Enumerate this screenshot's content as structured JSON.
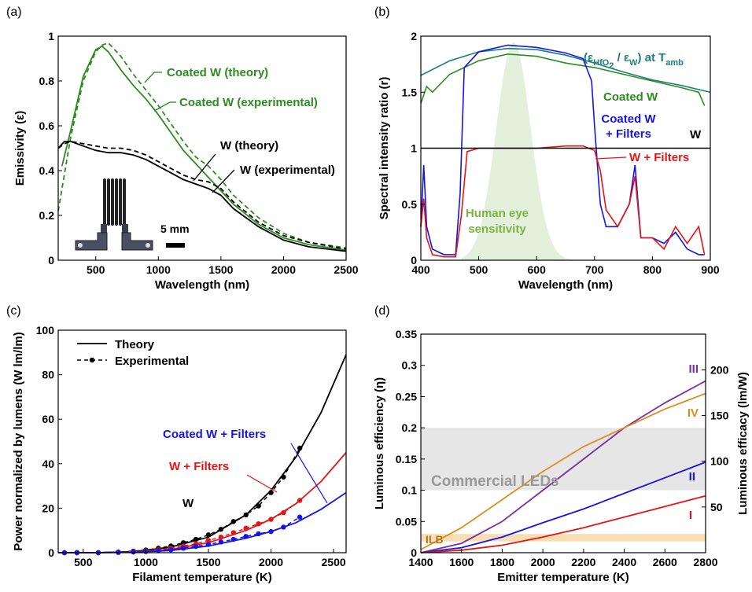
{
  "chart_data": [
    {
      "panel": "(a)",
      "type": "line",
      "xlabel": "Wavelength (nm)",
      "ylabel": "Emissivity (ε)",
      "xlim": [
        200,
        2500
      ],
      "ylim": [
        0,
        1
      ],
      "xticks": [
        500,
        1000,
        1500,
        2000,
        2500
      ],
      "yticks": [
        0,
        0.2,
        0.4,
        0.6,
        0.8,
        1
      ],
      "inset_scale_label": "5 mm",
      "series": [
        {
          "name": "Coated W (theory)",
          "color": "#2e8b22",
          "dash": true,
          "x": [
            200,
            300,
            400,
            500,
            550,
            600,
            700,
            800,
            900,
            1000,
            1100,
            1200,
            1300,
            1400,
            1500,
            1600,
            1800,
            2000,
            2200,
            2500
          ],
          "y": [
            0.22,
            0.55,
            0.8,
            0.93,
            0.96,
            0.97,
            0.91,
            0.83,
            0.76,
            0.69,
            0.61,
            0.53,
            0.46,
            0.42,
            0.36,
            0.29,
            0.19,
            0.12,
            0.08,
            0.055
          ]
        },
        {
          "name": "Coated W (experimental)",
          "color": "#2e8b22",
          "dash": false,
          "x": [
            230,
            300,
            400,
            500,
            550,
            600,
            700,
            800,
            900,
            1000,
            1100,
            1200,
            1300,
            1400,
            1500,
            1600,
            1800,
            2000,
            2200,
            2500
          ],
          "y": [
            0.42,
            0.58,
            0.82,
            0.94,
            0.955,
            0.93,
            0.85,
            0.78,
            0.72,
            0.65,
            0.57,
            0.49,
            0.43,
            0.37,
            0.31,
            0.25,
            0.16,
            0.1,
            0.07,
            0.045
          ]
        },
        {
          "name": "W (theory)",
          "color": "#000000",
          "dash": true,
          "x": [
            200,
            250,
            300,
            400,
            500,
            600,
            700,
            800,
            900,
            1000,
            1100,
            1200,
            1300,
            1400,
            1500,
            1600,
            1800,
            2000,
            2200,
            2500
          ],
          "y": [
            0.5,
            0.52,
            0.53,
            0.52,
            0.51,
            0.5,
            0.5,
            0.49,
            0.47,
            0.44,
            0.41,
            0.38,
            0.36,
            0.35,
            0.32,
            0.26,
            0.17,
            0.11,
            0.08,
            0.05
          ]
        },
        {
          "name": "W (experimental)",
          "color": "#000000",
          "dash": false,
          "x": [
            200,
            250,
            300,
            400,
            500,
            600,
            700,
            800,
            900,
            1000,
            1100,
            1200,
            1300,
            1400,
            1500,
            1600,
            1800,
            2000,
            2200,
            2500
          ],
          "y": [
            0.5,
            0.53,
            0.53,
            0.51,
            0.49,
            0.48,
            0.48,
            0.47,
            0.45,
            0.42,
            0.39,
            0.36,
            0.34,
            0.32,
            0.29,
            0.23,
            0.15,
            0.09,
            0.06,
            0.04
          ]
        }
      ]
    },
    {
      "panel": "(b)",
      "type": "line",
      "xlabel": "Wavelength (nm)",
      "ylabel": "Spectral intensity ratio (r)",
      "xlim": [
        400,
        900
      ],
      "ylim": [
        0,
        2
      ],
      "xticks": [
        400,
        500,
        600,
        700,
        800,
        900
      ],
      "yticks": [
        0,
        0.5,
        1,
        1.5,
        2
      ],
      "annotations": [
        "Human eye",
        "sensitivity",
        "Coated W",
        "Coated W",
        "+ Filters",
        "W",
        "W + Filters",
        "(ε",
        "HfO",
        "2",
        " / ε",
        "W",
        ") at T",
        "amb"
      ],
      "series": [
        {
          "name": "(ε HfO2 / ε W) at T amb",
          "color": "#1f7f7f",
          "x": [
            400,
            450,
            500,
            550,
            600,
            650,
            700,
            750,
            800,
            850,
            900
          ],
          "y": [
            1.65,
            1.78,
            1.86,
            1.89,
            1.88,
            1.83,
            1.76,
            1.68,
            1.61,
            1.56,
            1.5
          ]
        },
        {
          "name": "Coated W",
          "color": "#2e8b22",
          "x": [
            400,
            410,
            420,
            450,
            500,
            550,
            600,
            650,
            700,
            750,
            800,
            850,
            880,
            890
          ],
          "y": [
            1.4,
            1.55,
            1.5,
            1.66,
            1.78,
            1.84,
            1.82,
            1.76,
            1.72,
            1.66,
            1.6,
            1.54,
            1.5,
            1.38
          ]
        },
        {
          "name": "Coated W + Filters",
          "color": "#1414e6",
          "x": [
            400,
            405,
            410,
            420,
            440,
            460,
            468,
            475,
            500,
            550,
            600,
            650,
            680,
            695,
            700,
            710,
            720,
            740,
            760,
            770,
            780,
            800,
            820,
            840,
            860,
            880,
            890
          ],
          "y": [
            0.3,
            0.85,
            0.3,
            0.1,
            0.05,
            0.05,
            0.6,
            1.72,
            1.86,
            1.92,
            1.9,
            1.85,
            1.8,
            1.6,
            1.2,
            0.5,
            0.3,
            0.3,
            0.5,
            0.85,
            0.2,
            0.2,
            0.15,
            0.25,
            0.1,
            0.05,
            0.05
          ]
        },
        {
          "name": "W + Filters",
          "color": "#e61414",
          "x": [
            400,
            405,
            410,
            420,
            440,
            460,
            470,
            480,
            500,
            550,
            600,
            650,
            680,
            700,
            710,
            720,
            740,
            760,
            770,
            780,
            800,
            820,
            840,
            860,
            880,
            890
          ],
          "y": [
            0.3,
            0.55,
            0.2,
            0.05,
            0.03,
            0.03,
            0.4,
            0.97,
            1.0,
            1.0,
            1.0,
            1.02,
            1.02,
            0.98,
            0.8,
            0.45,
            0.3,
            0.5,
            0.75,
            0.2,
            0.2,
            0.1,
            0.3,
            0.15,
            0.3,
            0.05
          ]
        },
        {
          "name": "W",
          "color": "#000000",
          "x": [
            400,
            900
          ],
          "y": [
            1,
            1
          ]
        }
      ]
    },
    {
      "panel": "(c)",
      "type": "line",
      "xlabel": "Filament temperature (K)",
      "ylabel": "Power normalized by lumens (W lm/lm)",
      "xlim": [
        300,
        2600
      ],
      "ylim": [
        0,
        100
      ],
      "xticks": [
        500,
        1000,
        1500,
        2000,
        2500
      ],
      "yticks": [
        0,
        20,
        40,
        60,
        80,
        100
      ],
      "legend": [
        "Theory",
        "Experimental"
      ],
      "labels": [
        "Coated W + Filters",
        "W + Filters",
        "W"
      ],
      "series": [
        {
          "name": "W",
          "color": "#000000",
          "x": [
            300,
            600,
            900,
            1200,
            1500,
            1800,
            2000,
            2200,
            2400,
            2600
          ],
          "y": [
            0,
            0,
            0.5,
            2.5,
            7,
            17,
            28,
            43,
            63,
            89
          ]
        },
        {
          "name": "W + Filters",
          "color": "#e61414",
          "x": [
            300,
            600,
            900,
            1200,
            1500,
            1800,
            2000,
            2200,
            2400,
            2600
          ],
          "y": [
            0,
            0,
            0.3,
            1.5,
            4.5,
            10,
            15,
            22,
            32,
            45
          ]
        },
        {
          "name": "Coated W + Filters",
          "color": "#1414e6",
          "x": [
            300,
            600,
            900,
            1200,
            1500,
            1800,
            2000,
            2200,
            2400,
            2600
          ],
          "y": [
            0,
            0,
            0.2,
            1,
            3,
            6.5,
            9.5,
            13.5,
            19.5,
            27
          ]
        }
      ],
      "experimental_points": [
        {
          "name": "W",
          "color": "#000000",
          "x": [
            350,
            450,
            620,
            780,
            900,
            1000,
            1100,
            1200,
            1300,
            1400,
            1500,
            1600,
            1700,
            1800,
            1900,
            2000,
            2100,
            2230
          ],
          "y": [
            0,
            0,
            0,
            0.3,
            0.7,
            1.2,
            2,
            3,
            4.5,
            6,
            8,
            10.5,
            14,
            17,
            21,
            27,
            34,
            47
          ]
        },
        {
          "name": "W + Filters",
          "color": "#e61414",
          "x": [
            350,
            450,
            620,
            780,
            900,
            1000,
            1100,
            1200,
            1300,
            1400,
            1500,
            1600,
            1700,
            1800,
            1900,
            2000,
            2100,
            2230
          ],
          "y": [
            0,
            0,
            0,
            0.2,
            0.5,
            0.8,
            1.3,
            2,
            3,
            4,
            5.5,
            7,
            9,
            11,
            13,
            15,
            18,
            23.5
          ]
        },
        {
          "name": "Coated W + Filters",
          "color": "#1414e6",
          "x": [
            350,
            450,
            620,
            780,
            900,
            1000,
            1100,
            1200,
            1300,
            1400,
            1500,
            1600,
            1700,
            1800,
            1900,
            2000,
            2100,
            2230
          ],
          "y": [
            0,
            0,
            0,
            0.1,
            0.3,
            0.5,
            0.9,
            1.3,
            2,
            2.8,
            3.7,
            4.8,
            6,
            7.3,
            8.5,
            9.5,
            11.5,
            16
          ]
        }
      ]
    },
    {
      "panel": "(d)",
      "type": "line",
      "xlabel": "Emitter temperature (K)",
      "ylabel": "Luminous efficiency (η)",
      "y2label": "Luminous efficacy (lm/W)",
      "xlim": [
        1400,
        2800
      ],
      "ylim": [
        0,
        0.35
      ],
      "xticks": [
        1400,
        1600,
        1800,
        2000,
        2200,
        2400,
        2600,
        2800
      ],
      "yticks": [
        0,
        0.05,
        0.1,
        0.15,
        0.2,
        0.25,
        0.3,
        0.35
      ],
      "y2ticks": [
        50,
        100,
        150,
        200
      ],
      "bands": [
        {
          "label": "Commercial LEDs",
          "range": [
            0.1,
            0.2
          ],
          "color": "#e6e6e6"
        },
        {
          "label": "ILB",
          "range": [
            0.018,
            0.03
          ],
          "color": "#f9deb3"
        }
      ],
      "series": [
        {
          "name": "III",
          "color": "#7a2e9a",
          "x": [
            1400,
            1600,
            1800,
            2000,
            2200,
            2400,
            2600,
            2800
          ],
          "y": [
            0,
            0.015,
            0.05,
            0.1,
            0.15,
            0.2,
            0.24,
            0.275
          ]
        },
        {
          "name": "IV",
          "color": "#e08a1e",
          "x": [
            1400,
            1600,
            1800,
            2000,
            2200,
            2400,
            2600,
            2800
          ],
          "y": [
            0.005,
            0.04,
            0.085,
            0.13,
            0.17,
            0.2,
            0.23,
            0.255
          ]
        },
        {
          "name": "II",
          "color": "#1414e6",
          "x": [
            1400,
            1600,
            1800,
            2000,
            2200,
            2400,
            2600,
            2800
          ],
          "y": [
            0,
            0.008,
            0.025,
            0.048,
            0.07,
            0.095,
            0.12,
            0.145
          ]
        },
        {
          "name": "I",
          "color": "#e61414",
          "x": [
            1400,
            1600,
            1800,
            2000,
            2200,
            2400,
            2600,
            2800
          ],
          "y": [
            0,
            0.004,
            0.012,
            0.025,
            0.04,
            0.057,
            0.074,
            0.091
          ]
        }
      ]
    }
  ],
  "panel_labels": [
    "(a)",
    "(b)",
    "(c)",
    "(d)"
  ]
}
